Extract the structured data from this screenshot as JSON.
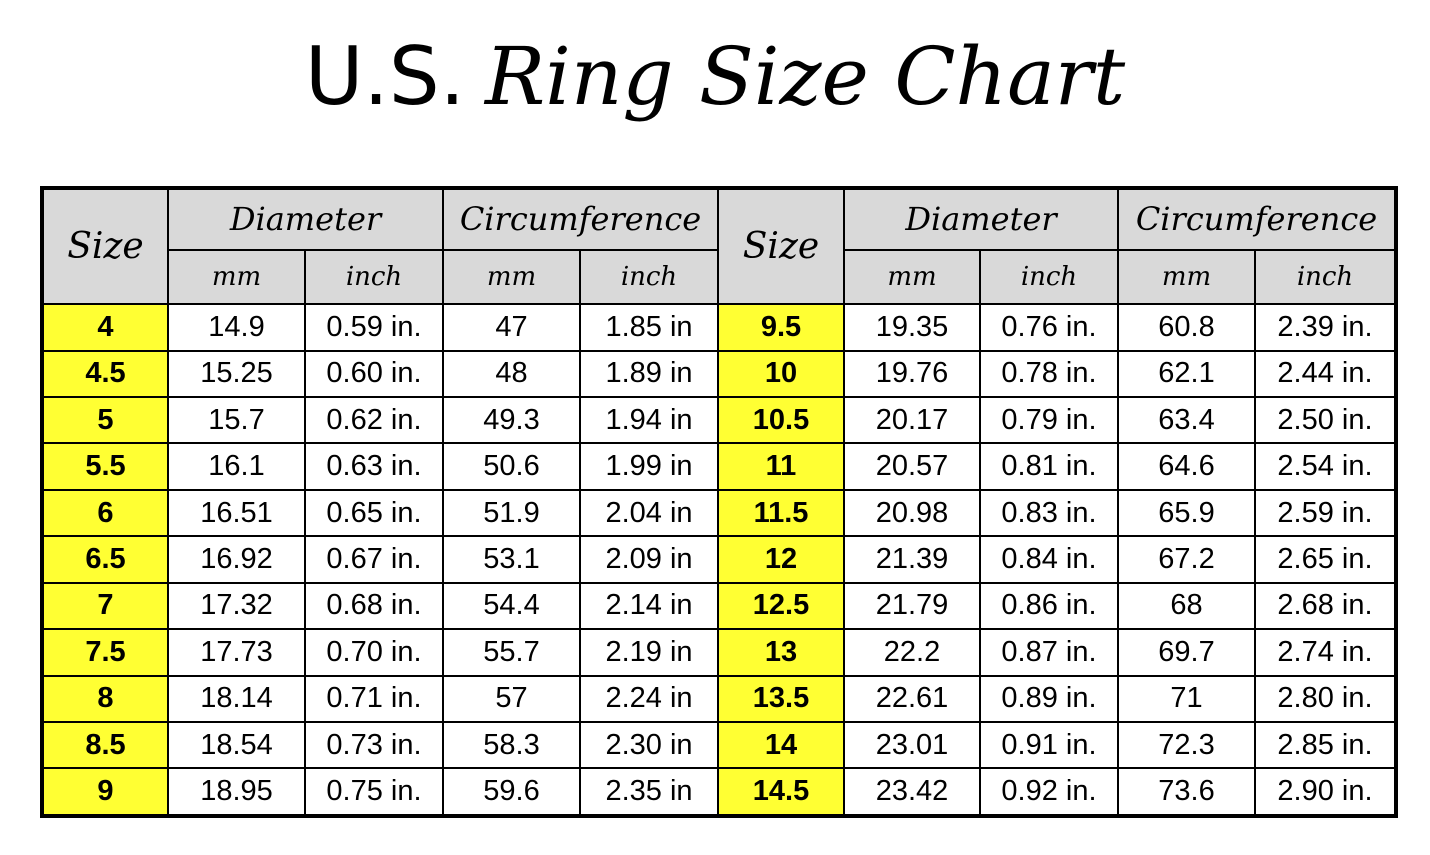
{
  "title": {
    "plain": "U.S.",
    "script": "Ring Size Chart"
  },
  "table": {
    "header_groups": [
      "Size",
      "Diameter",
      "Circumference",
      "Size",
      "Diameter",
      "Circumference"
    ],
    "subheaders": [
      "mm",
      "inch",
      "mm",
      "inch",
      "mm",
      "inch",
      "mm",
      "inch"
    ],
    "rows": [
      [
        "4",
        "14.9",
        "0.59 in.",
        "47",
        "1.85 in",
        "9.5",
        "19.35",
        "0.76 in.",
        "60.8",
        "2.39 in."
      ],
      [
        "4.5",
        "15.25",
        "0.60 in.",
        "48",
        "1.89 in",
        "10",
        "19.76",
        "0.78 in.",
        "62.1",
        "2.44 in."
      ],
      [
        "5",
        "15.7",
        "0.62 in.",
        "49.3",
        "1.94 in",
        "10.5",
        "20.17",
        "0.79 in.",
        "63.4",
        "2.50 in."
      ],
      [
        "5.5",
        "16.1",
        "0.63 in.",
        "50.6",
        "1.99 in",
        "11",
        "20.57",
        "0.81 in.",
        "64.6",
        "2.54 in."
      ],
      [
        "6",
        "16.51",
        "0.65 in.",
        "51.9",
        "2.04 in",
        "11.5",
        "20.98",
        "0.83 in.",
        "65.9",
        "2.59 in."
      ],
      [
        "6.5",
        "16.92",
        "0.67 in.",
        "53.1",
        "2.09 in",
        "12",
        "21.39",
        "0.84 in.",
        "67.2",
        "2.65 in."
      ],
      [
        "7",
        "17.32",
        "0.68 in.",
        "54.4",
        "2.14 in",
        "12.5",
        "21.79",
        "0.86 in.",
        "68",
        "2.68 in."
      ],
      [
        "7.5",
        "17.73",
        "0.70 in.",
        "55.7",
        "2.19 in",
        "13",
        "22.2",
        "0.87 in.",
        "69.7",
        "2.74 in."
      ],
      [
        "8",
        "18.14",
        "0.71 in.",
        "57",
        "2.24 in",
        "13.5",
        "22.61",
        "0.89 in.",
        "71",
        "2.80 in."
      ],
      [
        "8.5",
        "18.54",
        "0.73 in.",
        "58.3",
        "2.30 in",
        "14",
        "23.01",
        "0.91 in.",
        "72.3",
        "2.85 in."
      ],
      [
        "9",
        "18.95",
        "0.75 in.",
        "59.6",
        "2.35 in",
        "14.5",
        "23.42",
        "0.92 in.",
        "73.6",
        "2.90 in."
      ]
    ]
  }
}
